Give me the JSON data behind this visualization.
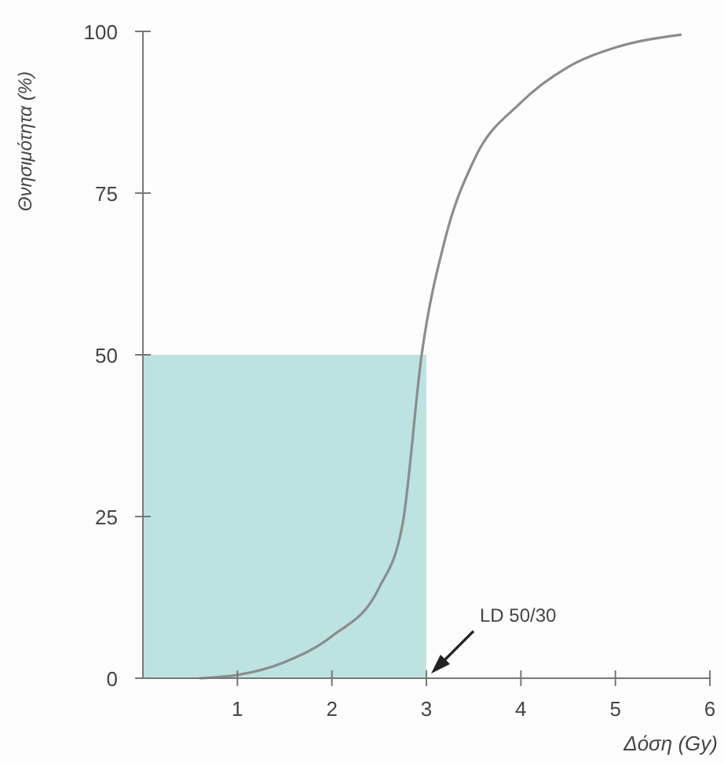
{
  "chart_data": {
    "type": "line",
    "xlabel": "Δόση (Gy)",
    "ylabel": "Θνησιμότητα (%)",
    "xlim": [
      0,
      6
    ],
    "ylim": [
      0,
      100
    ],
    "xticks": [
      1,
      2,
      3,
      4,
      5,
      6
    ],
    "yticks": [
      0,
      25,
      50,
      75,
      100
    ],
    "series": [
      {
        "type": "area",
        "color": "#bde3e1",
        "x": [
          0,
          3
        ],
        "values": [
          50,
          50
        ]
      },
      {
        "color": "#8c8c8c",
        "x": [
          0.6,
          1,
          1.5,
          2,
          2.5,
          2.75,
          2.95,
          3.2,
          3.5,
          4,
          4.5,
          5,
          5.7
        ],
        "values": [
          0,
          0.5,
          2.5,
          6.5,
          14,
          24,
          50,
          68,
          80,
          89,
          94.5,
          97.5,
          99.5
        ]
      }
    ],
    "annotations": [
      "LD 50/30"
    ],
    "grid": false,
    "marker": "none",
    "line_style": "solid"
  }
}
